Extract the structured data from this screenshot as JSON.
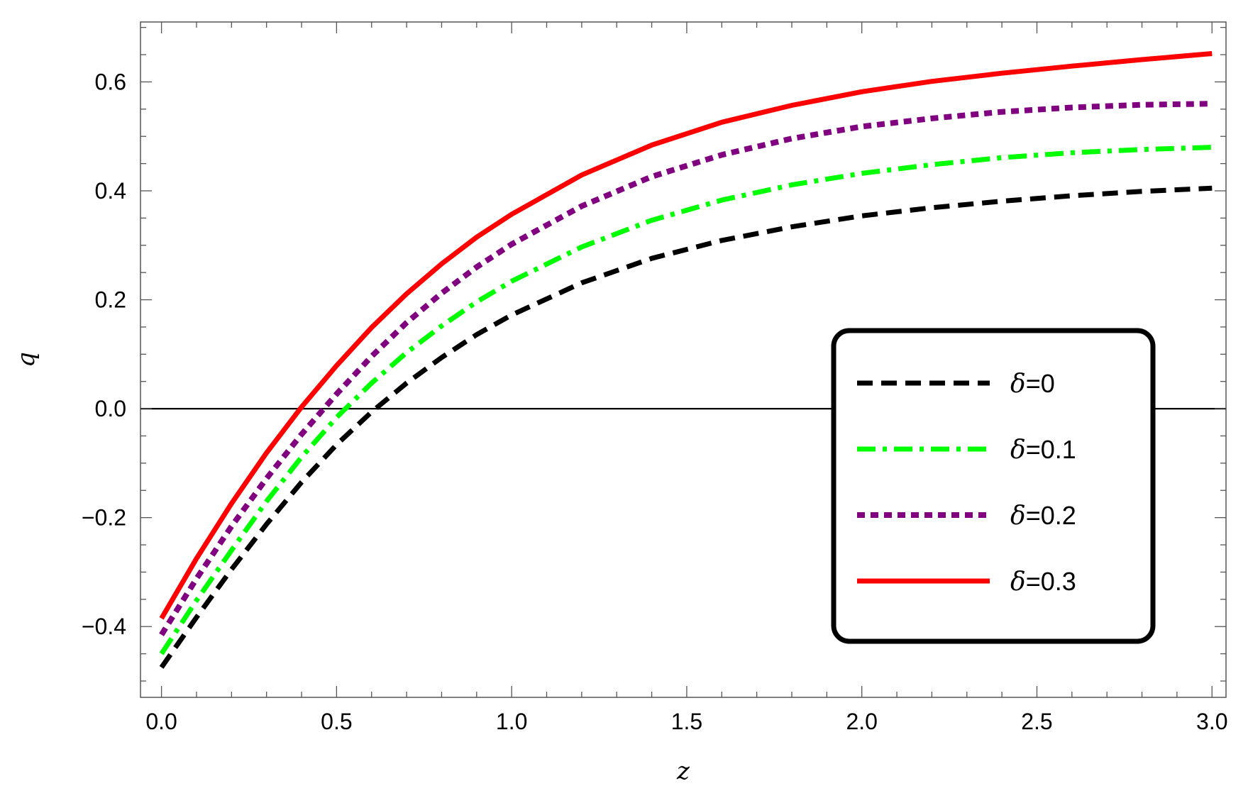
{
  "chart_data": {
    "type": "line",
    "title": "",
    "xlabel": "z",
    "ylabel": "q",
    "xlim": [
      -0.06,
      3.04
    ],
    "ylim": [
      -0.53,
      0.71
    ],
    "x_ticks": [
      0.0,
      0.5,
      1.0,
      1.5,
      2.0,
      2.5,
      3.0
    ],
    "x_tick_labels": [
      "0.0",
      "0.5",
      "1.0",
      "1.5",
      "2.0",
      "2.5",
      "3.0"
    ],
    "y_ticks": [
      -0.4,
      -0.2,
      0.0,
      0.2,
      0.4,
      0.6
    ],
    "y_tick_labels": [
      "−0.4",
      "−0.2",
      "0.0",
      "0.2",
      "0.4",
      "0.6"
    ],
    "grid": false,
    "zero_line": true,
    "legend_position": "lower-right",
    "x": [
      0,
      0.1,
      0.2,
      0.3,
      0.4,
      0.5,
      0.6,
      0.7,
      0.8,
      0.9,
      1.0,
      1.2,
      1.4,
      1.6,
      1.8,
      2.0,
      2.2,
      2.4,
      2.6,
      2.8,
      3.0
    ],
    "series": [
      {
        "legend_symbol": "δ",
        "legend_value": "=0",
        "color": "#000000",
        "dash": "dashed",
        "values": [
          -0.475,
          -0.383,
          -0.295,
          -0.212,
          -0.135,
          -0.066,
          -0.006,
          0.047,
          0.094,
          0.136,
          0.172,
          0.231,
          0.276,
          0.309,
          0.334,
          0.354,
          0.369,
          0.381,
          0.391,
          0.399,
          0.405
        ]
      },
      {
        "legend_symbol": "δ",
        "legend_value": "=0.1",
        "color": "#00ff00",
        "dash": "dashdot",
        "values": [
          -0.45,
          -0.352,
          -0.26,
          -0.17,
          -0.089,
          -0.016,
          0.047,
          0.103,
          0.152,
          0.196,
          0.234,
          0.297,
          0.346,
          0.383,
          0.411,
          0.432,
          0.448,
          0.461,
          0.47,
          0.476,
          0.48
        ]
      },
      {
        "legend_symbol": "δ",
        "legend_value": "=0.2",
        "color": "#800080",
        "dash": "dotted",
        "values": [
          -0.415,
          -0.312,
          -0.216,
          -0.128,
          -0.047,
          0.027,
          0.096,
          0.158,
          0.212,
          0.26,
          0.302,
          0.372,
          0.426,
          0.466,
          0.496,
          0.518,
          0.533,
          0.545,
          0.553,
          0.558,
          0.56
        ]
      },
      {
        "legend_symbol": "δ",
        "legend_value": "=0.3",
        "color": "#ff0000",
        "dash": "solid",
        "values": [
          -0.385,
          -0.275,
          -0.174,
          -0.081,
          0.003,
          0.079,
          0.149,
          0.211,
          0.266,
          0.315,
          0.357,
          0.429,
          0.484,
          0.526,
          0.557,
          0.582,
          0.601,
          0.616,
          0.629,
          0.641,
          0.652
        ]
      }
    ]
  }
}
